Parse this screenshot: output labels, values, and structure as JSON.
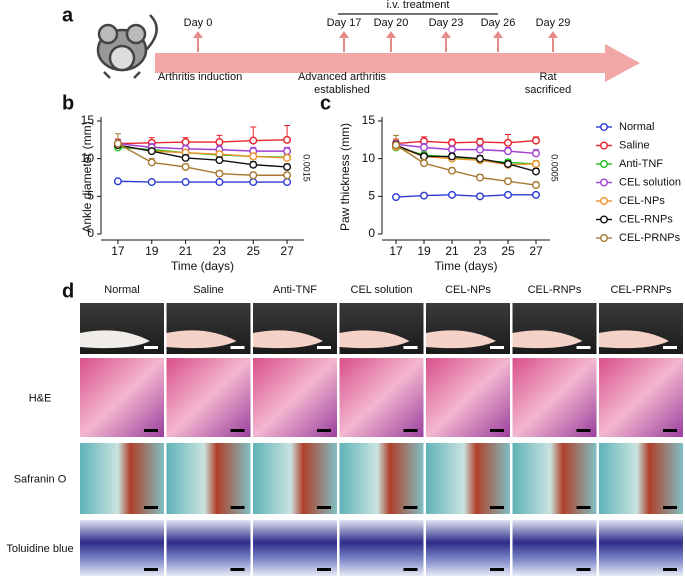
{
  "timeline": {
    "label": "a",
    "treatment": "i.v. treatment",
    "days": [
      "Day 0",
      "Day 17",
      "Day 20",
      "Day 23",
      "Day 26",
      "Day 29"
    ],
    "events": [
      "Arthritis induction",
      "Advanced arthritis",
      "established",
      "Rat",
      "sacrificed"
    ]
  },
  "chart_data": [
    {
      "type": "line",
      "label": "b",
      "xlabel": "Time (days)",
      "ylabel": "Ankle diameter (mm)",
      "annotation": "0.0015",
      "x": [
        17,
        19,
        21,
        23,
        25,
        27
      ],
      "xlim": [
        16,
        28
      ],
      "xticks": [
        17,
        19,
        21,
        23,
        25,
        27
      ],
      "ylim": [
        0,
        15
      ],
      "yticks": [
        0,
        5,
        10,
        15
      ],
      "series": [
        {
          "name": "Normal",
          "color": "#2b3bd6",
          "values": [
            7.0,
            6.9,
            6.9,
            6.9,
            6.9,
            6.9
          ],
          "errors": [
            0.2,
            0.2,
            0.2,
            0.2,
            0.2,
            0.2
          ]
        },
        {
          "name": "Saline",
          "color": "#e8232a",
          "values": [
            12.0,
            12.1,
            12.2,
            12.2,
            12.4,
            12.5
          ],
          "errors": [
            0.6,
            0.7,
            0.6,
            0.9,
            1.8,
            1.9
          ]
        },
        {
          "name": "Anti-TNF",
          "color": "#1fc21f",
          "values": [
            11.5,
            11.2,
            10.8,
            10.5,
            10.3,
            10.2
          ],
          "errors": [
            0.4,
            0.4,
            0.4,
            0.4,
            0.4,
            0.4
          ]
        },
        {
          "name": "CEL solution",
          "color": "#a23fd0",
          "values": [
            12.0,
            11.5,
            11.3,
            11.2,
            11.0,
            11.0
          ],
          "errors": [
            0.5,
            0.5,
            0.5,
            0.5,
            0.5,
            0.5
          ]
        },
        {
          "name": "CEL-NPs",
          "color": "#f0922b",
          "values": [
            11.8,
            11.0,
            10.8,
            10.6,
            10.3,
            10.1
          ],
          "errors": [
            0.5,
            0.4,
            0.4,
            0.4,
            0.4,
            0.4
          ]
        },
        {
          "name": "CEL-RNPs",
          "color": "#111111",
          "values": [
            11.8,
            11.0,
            10.1,
            9.8,
            9.2,
            8.9
          ],
          "errors": [
            0.5,
            0.4,
            0.4,
            0.4,
            0.4,
            0.4
          ]
        },
        {
          "name": "CEL-PRNPs",
          "color": "#a6792f",
          "values": [
            12.0,
            9.5,
            8.9,
            8.0,
            7.8,
            7.8
          ],
          "errors": [
            1.3,
            0.5,
            0.4,
            0.4,
            0.4,
            0.4
          ]
        }
      ]
    },
    {
      "type": "line",
      "label": "c",
      "xlabel": "Time (days)",
      "ylabel": "Paw thickness (mm)",
      "annotation": "0.0005",
      "x": [
        17,
        19,
        21,
        23,
        25,
        27
      ],
      "xlim": [
        16,
        28
      ],
      "xticks": [
        17,
        19,
        21,
        23,
        25,
        27
      ],
      "ylim": [
        0,
        15
      ],
      "yticks": [
        0,
        5,
        10,
        15
      ],
      "series": [
        {
          "values": [
            4.9,
            5.1,
            5.2,
            5.0,
            5.2,
            5.2
          ],
          "errors": [
            0.2,
            0.2,
            0.2,
            0.2,
            0.2,
            0.2
          ]
        },
        {
          "values": [
            12.0,
            12.3,
            12.1,
            12.2,
            12.1,
            12.4
          ],
          "errors": [
            0.6,
            0.6,
            0.5,
            0.5,
            1.1,
            0.5
          ]
        },
        {
          "values": [
            11.5,
            10.5,
            10.2,
            9.8,
            9.5,
            9.3
          ],
          "errors": [
            0.4,
            0.4,
            0.4,
            0.4,
            0.4,
            0.4
          ]
        },
        {
          "values": [
            11.9,
            11.5,
            11.2,
            11.2,
            11.0,
            10.7
          ],
          "errors": [
            0.5,
            0.5,
            0.5,
            0.5,
            0.5,
            0.5
          ]
        },
        {
          "values": [
            11.6,
            10.3,
            10.0,
            9.8,
            9.2,
            9.3
          ],
          "errors": [
            0.5,
            0.4,
            0.4,
            0.4,
            0.4,
            0.4
          ]
        },
        {
          "values": [
            11.8,
            10.3,
            10.3,
            10.0,
            9.3,
            8.3
          ],
          "errors": [
            0.5,
            0.4,
            0.4,
            0.4,
            0.4,
            0.4
          ]
        },
        {
          "values": [
            11.8,
            9.4,
            8.4,
            7.5,
            7.0,
            6.5
          ],
          "errors": [
            1.3,
            0.5,
            0.4,
            0.4,
            0.4,
            0.4
          ]
        }
      ]
    }
  ],
  "images": {
    "label": "d",
    "columns": [
      "Normal",
      "Saline",
      "Anti-TNF",
      "CEL solution",
      "CEL-NPs",
      "CEL-RNPs",
      "CEL-PRNPs"
    ],
    "rows": [
      "H&E",
      "Safranin O",
      "Toluidine blue"
    ]
  }
}
